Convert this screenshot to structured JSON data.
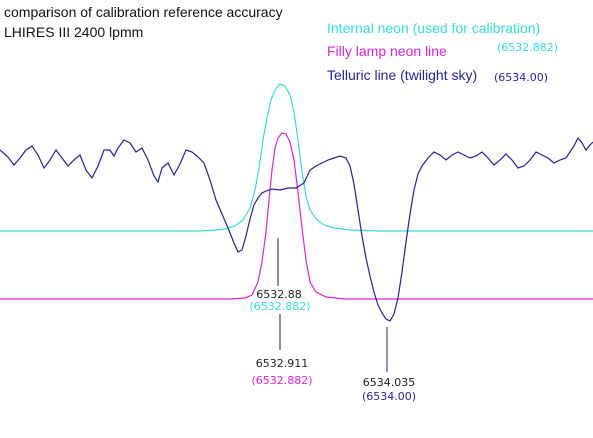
{
  "chart_data": {
    "type": "line",
    "title": "comparison of calibration reference accuracy",
    "subtitle": "LHIRES III  2400 lpmm",
    "xlabel": "",
    "ylabel": "",
    "grid": false,
    "legend_position": "top-right",
    "series": [
      {
        "name": "Internal neon (used for calibration)",
        "reference": "(6532.882)",
        "color": "#33dddd",
        "points": [
          [
            0,
            231
          ],
          [
            200,
            231
          ],
          [
            215,
            230
          ],
          [
            225,
            229
          ],
          [
            235,
            226
          ],
          [
            243,
            220
          ],
          [
            250,
            208
          ],
          [
            255,
            190
          ],
          [
            259,
            168
          ],
          [
            263,
            140
          ],
          [
            267,
            118
          ],
          [
            271,
            100
          ],
          [
            275,
            90
          ],
          [
            280,
            84
          ],
          [
            285,
            86
          ],
          [
            290,
            95
          ],
          [
            294,
            112
          ],
          [
            298,
            140
          ],
          [
            302,
            172
          ],
          [
            306,
            196
          ],
          [
            310,
            210
          ],
          [
            316,
            219
          ],
          [
            324,
            225
          ],
          [
            334,
            228
          ],
          [
            350,
            230
          ],
          [
            380,
            231
          ],
          [
            593,
            231
          ]
        ]
      },
      {
        "name": "Filly lamp neon line",
        "reference": "",
        "color": "#dd22dd",
        "points": [
          [
            0,
            299
          ],
          [
            230,
            299
          ],
          [
            245,
            298
          ],
          [
            252,
            295
          ],
          [
            258,
            282
          ],
          [
            262,
            262
          ],
          [
            266,
            232
          ],
          [
            269,
            200
          ],
          [
            272,
            170
          ],
          [
            275,
            148
          ],
          [
            278,
            138
          ],
          [
            282,
            133
          ],
          [
            286,
            134
          ],
          [
            290,
            142
          ],
          [
            294,
            160
          ],
          [
            298,
            192
          ],
          [
            302,
            228
          ],
          [
            306,
            260
          ],
          [
            310,
            282
          ],
          [
            316,
            292
          ],
          [
            326,
            297
          ],
          [
            345,
            299
          ],
          [
            593,
            299
          ]
        ]
      },
      {
        "name": "Telluric line (twilight sky)",
        "reference": "(6534.00)",
        "color": "#2222aa",
        "points": [
          [
            0,
            150
          ],
          [
            8,
            157
          ],
          [
            14,
            165
          ],
          [
            20,
            158
          ],
          [
            26,
            150
          ],
          [
            32,
            146
          ],
          [
            38,
            155
          ],
          [
            44,
            168
          ],
          [
            50,
            160
          ],
          [
            56,
            150
          ],
          [
            62,
            158
          ],
          [
            68,
            166
          ],
          [
            74,
            160
          ],
          [
            80,
            155
          ],
          [
            86,
            170
          ],
          [
            92,
            178
          ],
          [
            98,
            166
          ],
          [
            104,
            150
          ],
          [
            110,
            150
          ],
          [
            114,
            156
          ],
          [
            118,
            148
          ],
          [
            124,
            140
          ],
          [
            130,
            143
          ],
          [
            136,
            152
          ],
          [
            142,
            148
          ],
          [
            148,
            160
          ],
          [
            154,
            176
          ],
          [
            158,
            182
          ],
          [
            162,
            168
          ],
          [
            168,
            163
          ],
          [
            174,
            175
          ],
          [
            180,
            164
          ],
          [
            186,
            150
          ],
          [
            192,
            152
          ],
          [
            198,
            157
          ],
          [
            204,
            163
          ],
          [
            210,
            180
          ],
          [
            216,
            200
          ],
          [
            222,
            214
          ],
          [
            228,
            228
          ],
          [
            234,
            243
          ],
          [
            238,
            252
          ],
          [
            242,
            250
          ],
          [
            246,
            236
          ],
          [
            250,
            219
          ],
          [
            254,
            205
          ],
          [
            258,
            198
          ],
          [
            262,
            193
          ],
          [
            266,
            191
          ],
          [
            272,
            189
          ],
          [
            280,
            190
          ],
          [
            288,
            188
          ],
          [
            296,
            188
          ],
          [
            304,
            183
          ],
          [
            310,
            170
          ],
          [
            316,
            166
          ],
          [
            322,
            163
          ],
          [
            328,
            160
          ],
          [
            334,
            158
          ],
          [
            340,
            156
          ],
          [
            346,
            158
          ],
          [
            350,
            166
          ],
          [
            354,
            184
          ],
          [
            358,
            210
          ],
          [
            362,
            236
          ],
          [
            366,
            258
          ],
          [
            370,
            276
          ],
          [
            374,
            292
          ],
          [
            378,
            305
          ],
          [
            382,
            313
          ],
          [
            386,
            319
          ],
          [
            390,
            321
          ],
          [
            394,
            314
          ],
          [
            398,
            298
          ],
          [
            402,
            272
          ],
          [
            406,
            242
          ],
          [
            410,
            214
          ],
          [
            414,
            190
          ],
          [
            418,
            174
          ],
          [
            422,
            166
          ],
          [
            428,
            158
          ],
          [
            434,
            152
          ],
          [
            440,
            155
          ],
          [
            446,
            160
          ],
          [
            452,
            155
          ],
          [
            458,
            152
          ],
          [
            464,
            155
          ],
          [
            470,
            158
          ],
          [
            476,
            156
          ],
          [
            482,
            152
          ],
          [
            488,
            158
          ],
          [
            494,
            165
          ],
          [
            500,
            160
          ],
          [
            506,
            154
          ],
          [
            512,
            160
          ],
          [
            518,
            168
          ],
          [
            524,
            166
          ],
          [
            530,
            160
          ],
          [
            536,
            152
          ],
          [
            542,
            155
          ],
          [
            548,
            158
          ],
          [
            554,
            163
          ],
          [
            560,
            160
          ],
          [
            566,
            158
          ],
          [
            570,
            152
          ],
          [
            574,
            146
          ],
          [
            578,
            138
          ],
          [
            582,
            143
          ],
          [
            586,
            150
          ],
          [
            590,
            145
          ],
          [
            593,
            142
          ]
        ]
      }
    ],
    "annotations": [
      {
        "value": "6532.88",
        "reference": "(6532.882)",
        "value_color": "#222222",
        "reference_color": "#33dddd",
        "line_color": "#222222"
      },
      {
        "value": "6532.911",
        "reference": "(6532.882)",
        "value_color": "#222222",
        "reference_color": "#dd22dd",
        "line_color": "#222222"
      },
      {
        "value": "6534.035",
        "reference": "(6534.00)",
        "value_color": "#222222",
        "reference_color": "#2222aa",
        "line_color": "#2222aa"
      }
    ]
  }
}
